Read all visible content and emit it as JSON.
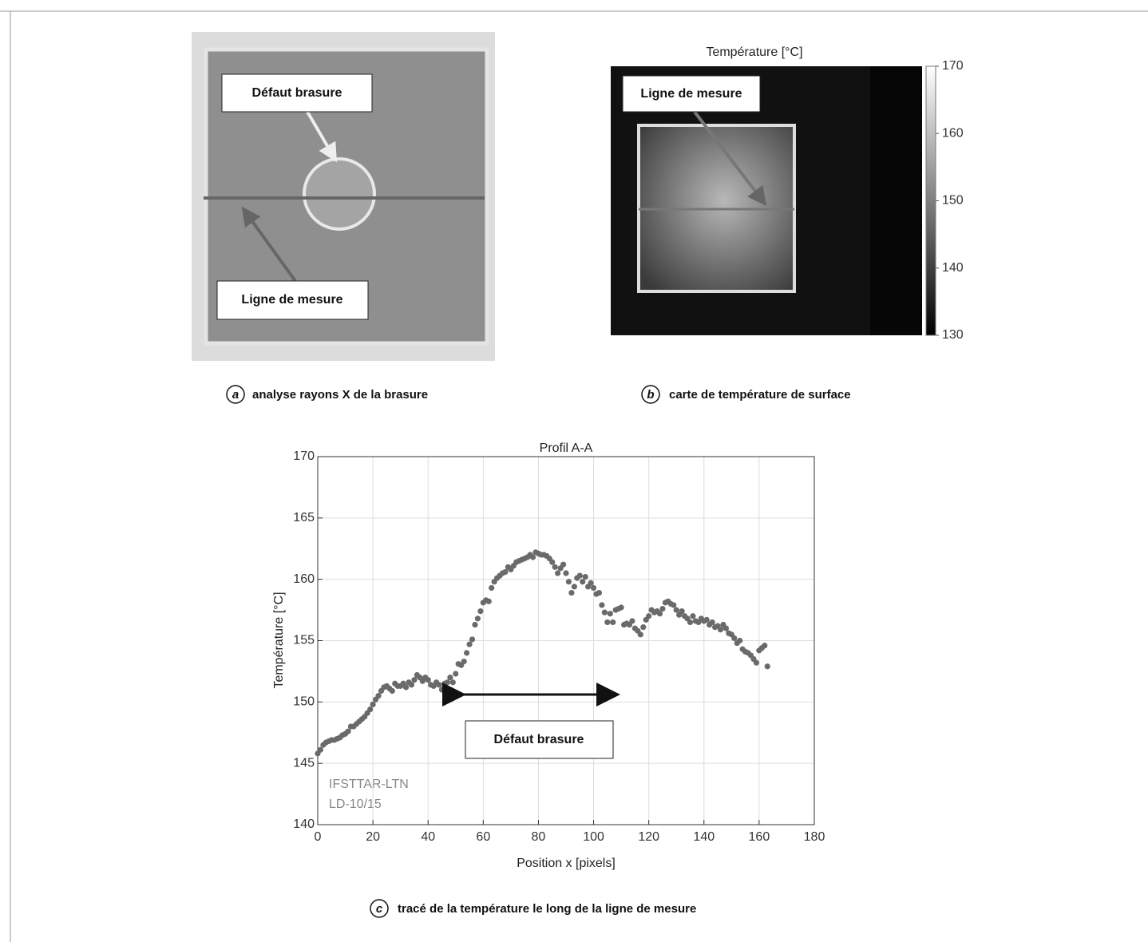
{
  "panel_a": {
    "label_defect": "Défaut brasure",
    "label_line": "Ligne de mesure",
    "caption_letter": "a",
    "caption": "analyse rayons X de la brasure"
  },
  "panel_b": {
    "caption_letter": "b",
    "caption": "carte de température de surface"
  },
  "panel_c": {
    "caption_letter": "c",
    "caption": "tracé de la température le long de la ligne de mesure"
  },
  "chart_data": [
    {
      "type": "colorbar",
      "title": "Température [°C]",
      "annotation": "Ligne de mesure",
      "ylim": [
        130,
        170
      ],
      "yticks": [
        130,
        140,
        150,
        160,
        170
      ]
    },
    {
      "type": "scatter",
      "title": "Profil A-A",
      "xlabel": "Position x [pixels]",
      "ylabel": "Température [°C]",
      "color": "#6a6a6a",
      "grid": true,
      "xlim": [
        0,
        180
      ],
      "ylim": [
        140,
        170
      ],
      "xticks": [
        0,
        20,
        40,
        60,
        80,
        100,
        120,
        140,
        160,
        180
      ],
      "yticks": [
        140,
        145,
        150,
        155,
        160,
        165,
        170
      ],
      "annotation": "Défaut brasure",
      "watermark": [
        "IFSTTAR-LTN",
        "LD-10/15"
      ],
      "x": [
        0,
        1,
        2,
        3,
        4,
        5,
        6,
        7,
        8,
        9,
        10,
        11,
        12,
        13,
        14,
        15,
        16,
        17,
        18,
        19,
        20,
        21,
        22,
        23,
        24,
        25,
        26,
        27,
        28,
        29,
        30,
        31,
        32,
        33,
        34,
        35,
        36,
        37,
        38,
        39,
        40,
        41,
        42,
        43,
        44,
        45,
        46,
        47,
        48,
        49,
        50,
        51,
        52,
        53,
        54,
        55,
        56,
        57,
        58,
        59,
        60,
        61,
        62,
        63,
        64,
        65,
        66,
        67,
        68,
        69,
        70,
        71,
        72,
        73,
        74,
        75,
        76,
        77,
        78,
        79,
        80,
        81,
        82,
        83,
        84,
        85,
        86,
        87,
        88,
        89,
        90,
        91,
        92,
        93,
        94,
        95,
        96,
        97,
        98,
        99,
        100,
        101,
        102,
        103,
        104,
        105,
        106,
        107,
        108,
        109,
        110,
        111,
        112,
        113,
        114,
        115,
        116,
        117,
        118,
        119,
        120,
        121,
        122,
        123,
        124,
        125,
        126,
        127,
        128,
        129,
        130,
        131,
        132,
        133,
        134,
        135,
        136,
        137,
        138,
        139,
        140,
        141,
        142,
        143,
        144,
        145,
        146,
        147,
        148,
        149,
        150,
        151,
        152,
        153,
        154,
        155,
        156,
        157,
        158,
        159,
        160,
        161,
        162,
        163
      ],
      "values": [
        145.8,
        146.1,
        146.5,
        146.7,
        146.8,
        146.9,
        146.9,
        147.0,
        147.1,
        147.3,
        147.4,
        147.6,
        148.0,
        148.0,
        148.2,
        148.4,
        148.6,
        148.8,
        149.1,
        149.4,
        149.8,
        150.2,
        150.5,
        150.9,
        151.2,
        151.3,
        151.1,
        150.9,
        151.5,
        151.3,
        151.3,
        151.5,
        151.2,
        151.6,
        151.4,
        151.8,
        152.2,
        152.0,
        151.7,
        152.0,
        151.8,
        151.4,
        151.3,
        151.6,
        151.4,
        151.0,
        151.5,
        151.6,
        152.0,
        151.6,
        152.3,
        153.1,
        153.0,
        153.3,
        154.0,
        154.7,
        155.1,
        156.3,
        156.8,
        157.4,
        158.1,
        158.3,
        158.2,
        159.3,
        159.8,
        160.1,
        160.3,
        160.5,
        160.6,
        161.0,
        160.8,
        161.1,
        161.4,
        161.5,
        161.6,
        161.7,
        161.8,
        162.0,
        161.8,
        162.2,
        162.1,
        162.0,
        162.0,
        161.9,
        161.7,
        161.4,
        161.0,
        160.5,
        160.9,
        161.2,
        160.5,
        159.8,
        158.9,
        159.4,
        160.1,
        160.3,
        159.8,
        160.2,
        159.4,
        159.7,
        159.3,
        158.8,
        158.9,
        157.9,
        157.3,
        156.5,
        157.2,
        156.5,
        157.5,
        157.6,
        157.7,
        156.3,
        156.4,
        156.3,
        156.6,
        156.0,
        155.8,
        155.5,
        156.1,
        156.7,
        157.0,
        157.5,
        157.3,
        157.4,
        157.2,
        157.6,
        158.1,
        158.2,
        158.0,
        157.9,
        157.5,
        157.1,
        157.4,
        157.0,
        156.8,
        156.5,
        157.0,
        156.6,
        156.5,
        156.8,
        156.6,
        156.7,
        156.3,
        156.5,
        156.1,
        156.2,
        155.9,
        156.3,
        156.0,
        155.6,
        155.5,
        155.2,
        154.8,
        155.0,
        154.3,
        154.1,
        154.0,
        153.8,
        153.5,
        153.2,
        154.2,
        154.4,
        154.6,
        152.9
      ]
    }
  ]
}
